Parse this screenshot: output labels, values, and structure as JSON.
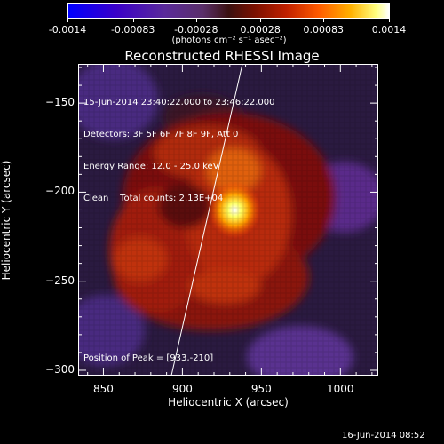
{
  "colorbar": {
    "tick_labels": [
      "-0.0014",
      "-0.00083",
      "-0.00028",
      "0.00028",
      "0.00083",
      "0.0014"
    ],
    "unit_label": "(photons cm⁻² s⁻¹ asec⁻²)",
    "range": [
      -0.0014,
      0.0014
    ]
  },
  "chart_data": {
    "type": "heatmap",
    "title": "Reconstructed RHESSI Image",
    "xlabel": "Heliocentric X (arcsec)",
    "ylabel": "Heliocentric Y (arcsec)",
    "xlim": [
      834,
      1024
    ],
    "ylim": [
      -303,
      -128
    ],
    "x_ticks": [
      850,
      900,
      950,
      1000
    ],
    "y_ticks": [
      -300,
      -250,
      -200,
      -150
    ],
    "peak": {
      "x": 933,
      "y": -210
    },
    "limb_line": [
      [
        893,
        -303
      ],
      [
        938,
        -128
      ]
    ],
    "annotations": [
      "15-Jun-2014 23:40:22.000 to 23:46:22.000",
      "Detectors: 3F 5F 6F 7F 8F 9F, Att 0",
      "Energy Range: 12.0 - 25.0 keV",
      "Clean    Total counts: 2.13E+04"
    ],
    "peak_label": "Position of Peak = [933,-210]"
  },
  "footer": {
    "timestamp": "16-Jun-2014 08:52"
  }
}
